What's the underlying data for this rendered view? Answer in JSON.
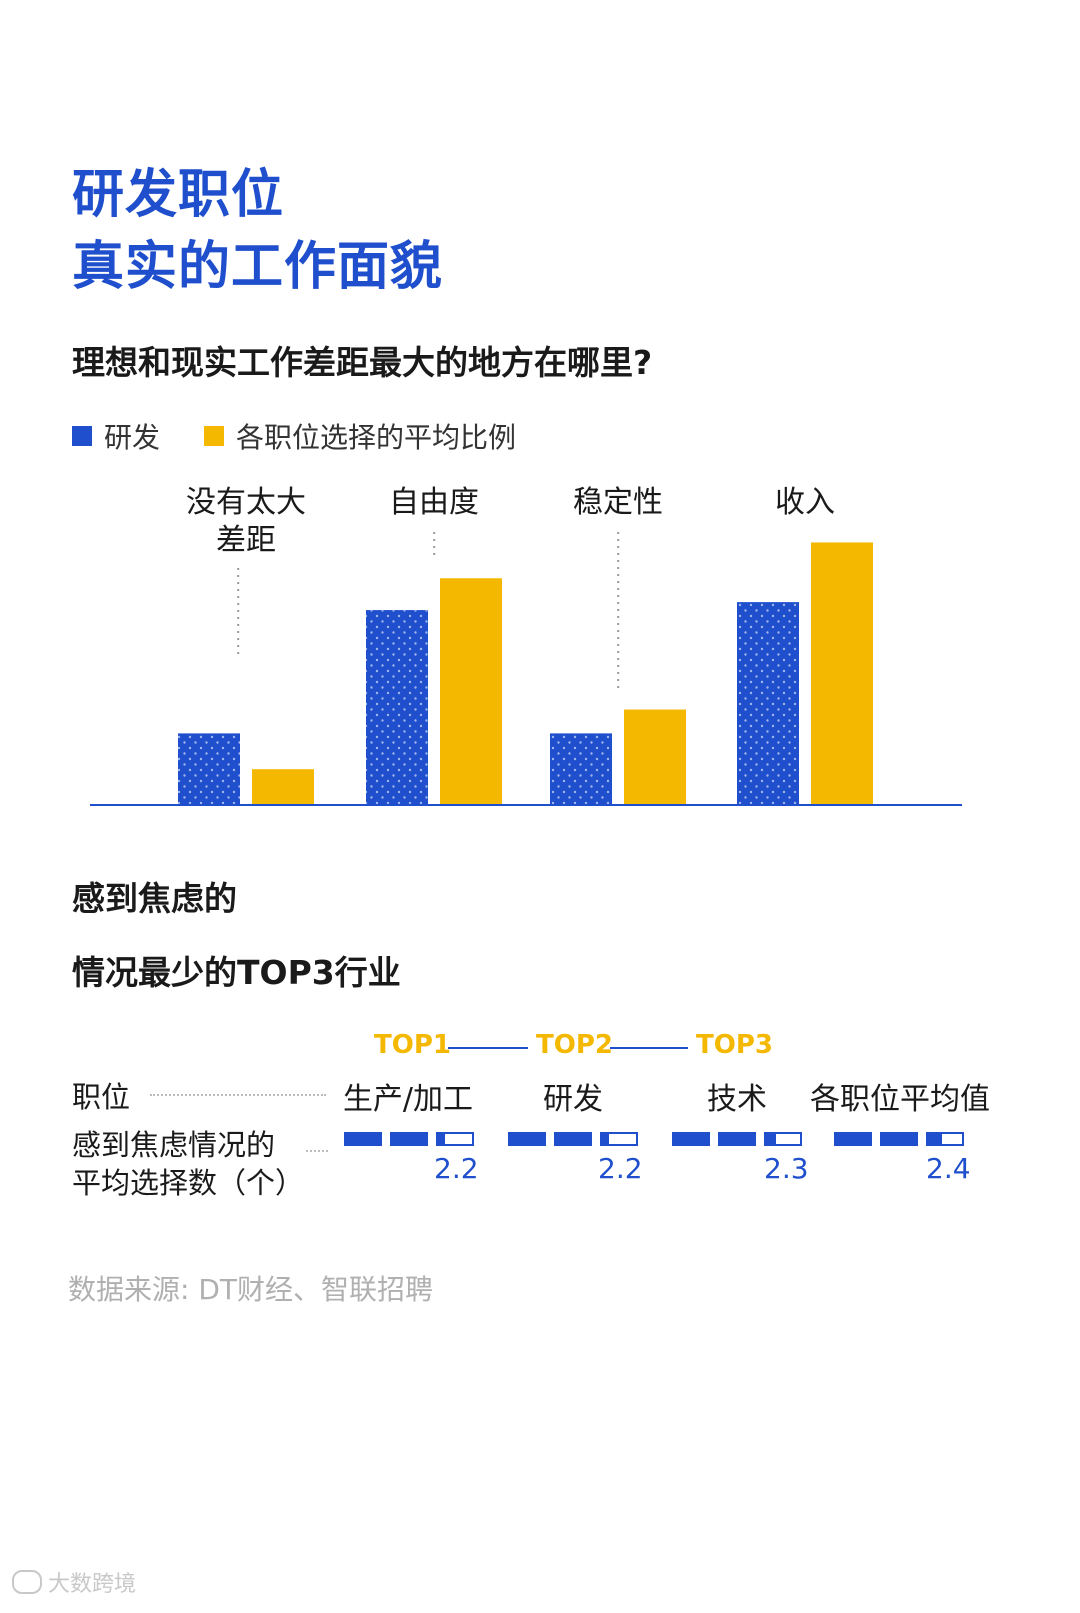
{
  "title": {
    "line1": "研发职位",
    "line2": "真实的工作面貌"
  },
  "section1": {
    "question": "理想和现实工作差距最大的地方在哪里?",
    "legend": [
      {
        "label": "研发",
        "color": "#1f4fcc"
      },
      {
        "label": "各职位选择的平均比例",
        "color": "#f5b800"
      }
    ]
  },
  "chart_data": [
    {
      "type": "bar",
      "title": "理想和现实工作差距最大的地方在哪里?",
      "categories": [
        {
          "line1": "没有太大",
          "line2": "差距"
        },
        {
          "line1": "自由度",
          "line2": ""
        },
        {
          "line1": "稳定性",
          "line2": ""
        },
        {
          "line1": "收入",
          "line2": ""
        }
      ],
      "series": [
        {
          "name": "研发",
          "color": "#1f4fcc",
          "values": [
            9,
            24.5,
            9,
            25.5
          ]
        },
        {
          "name": "各职位选择的平均比例",
          "color": "#f5b800",
          "values": [
            4.5,
            28.5,
            12,
            33
          ]
        }
      ],
      "ylim": [
        0,
        40
      ],
      "grid": false,
      "legend": "top-left"
    },
    {
      "type": "bar",
      "title": "感到焦虑的情况最少的TOP3行业",
      "categories": [
        "生产/加工",
        "研发",
        "技术",
        "各职位平均值"
      ],
      "values": [
        2.2,
        2.2,
        2.3,
        2.4
      ],
      "ranks": [
        "TOP1",
        "TOP2",
        "TOP3",
        ""
      ],
      "ylim": [
        0,
        3
      ]
    }
  ],
  "section2": {
    "title_line1": "感到焦虑的",
    "title_line2": "情况最少的TOP3行业",
    "row1_label": "职位",
    "row2_label_line1": "感到焦虑情况的",
    "row2_label_line2": "平均选择数（个）",
    "industries": [
      {
        "name": "生产/加工",
        "rank": "TOP1",
        "value": "2.2"
      },
      {
        "name": "研发",
        "rank": "TOP2",
        "value": "2.2"
      },
      {
        "name": "技术",
        "rank": "TOP3",
        "value": "2.3"
      },
      {
        "name": "各职位平均值",
        "rank": "",
        "value": "2.4"
      }
    ]
  },
  "source": "数据来源: DT财经、智联招聘",
  "watermark": "大数跨境"
}
